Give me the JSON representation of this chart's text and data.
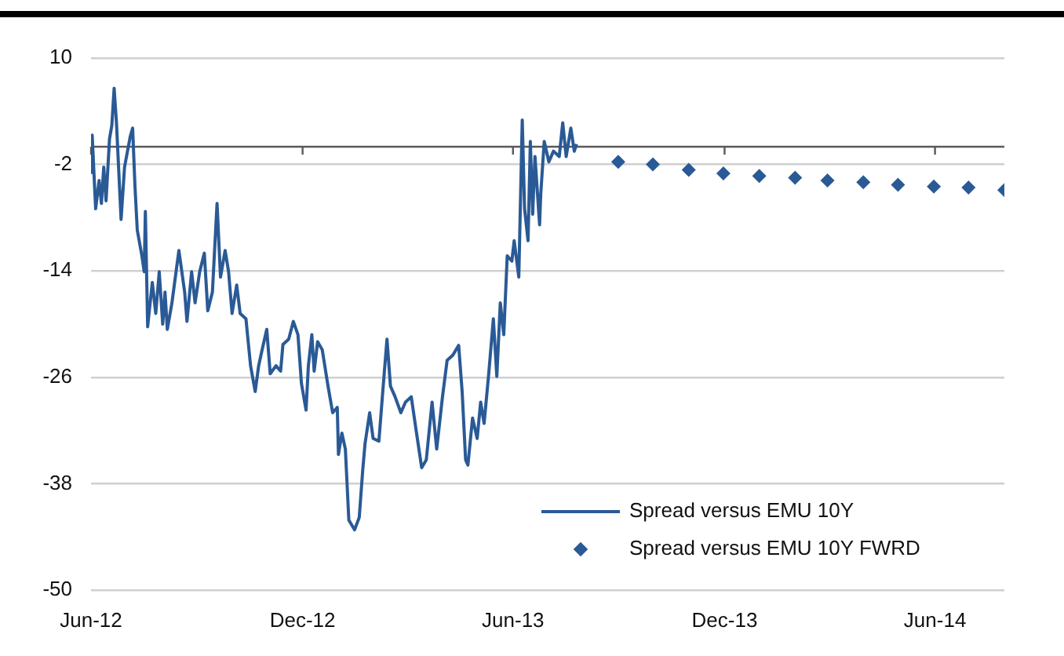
{
  "chart_data": {
    "type": "line",
    "legend": "bottom right",
    "grid": "y",
    "xlim": [
      "2012-06-01",
      "2014-07-31"
    ],
    "xticks": [
      {
        "value": "2012-06-01",
        "label": "Jun-12"
      },
      {
        "value": "2012-12-01",
        "label": "Dec-12"
      },
      {
        "value": "2013-06-01",
        "label": "Jun-13"
      },
      {
        "value": "2013-12-01",
        "label": "Dec-13"
      },
      {
        "value": "2014-06-01",
        "label": "Jun-14"
      }
    ],
    "ylim": [
      -50,
      10
    ],
    "yticks": [
      -50,
      -38,
      -26,
      -14,
      -2,
      10
    ],
    "ref_lines": [
      {
        "axis": "y",
        "value": 0,
        "color": "#595959"
      }
    ],
    "series": [
      {
        "name": "Spread versus EMU 10Y",
        "type": "line",
        "marker": "none",
        "color": "#2a5a96",
        "x": [
          "2012-06-01",
          "2012-06-02",
          "2012-06-05",
          "2012-06-08",
          "2012-06-10",
          "2012-06-12",
          "2012-06-14",
          "2012-06-17",
          "2012-06-19",
          "2012-06-21",
          "2012-06-23",
          "2012-06-27",
          "2012-06-30",
          "2012-07-05",
          "2012-07-07",
          "2012-07-09",
          "2012-07-11",
          "2012-07-15",
          "2012-07-17",
          "2012-07-18",
          "2012-07-20",
          "2012-07-24",
          "2012-07-27",
          "2012-07-30",
          "2012-08-02",
          "2012-08-04",
          "2012-08-06",
          "2012-08-10",
          "2012-08-16",
          "2012-08-21",
          "2012-08-23",
          "2012-08-27",
          "2012-08-30",
          "2012-09-03",
          "2012-09-07",
          "2012-09-10",
          "2012-09-14",
          "2012-09-18",
          "2012-09-21",
          "2012-09-25",
          "2012-09-28",
          "2012-10-01",
          "2012-10-05",
          "2012-10-08",
          "2012-10-13",
          "2012-10-17",
          "2012-10-21",
          "2012-10-24",
          "2012-10-27",
          "2012-10-31",
          "2012-11-03",
          "2012-11-08",
          "2012-11-12",
          "2012-11-14",
          "2012-11-19",
          "2012-11-23",
          "2012-11-27",
          "2012-11-30",
          "2012-12-04",
          "2012-12-06",
          "2012-12-09",
          "2012-12-11",
          "2012-12-14",
          "2012-12-18",
          "2012-12-23",
          "2012-12-27",
          "2012-12-31",
          "2013-01-01",
          "2013-01-04",
          "2013-01-07",
          "2013-01-10",
          "2013-01-15",
          "2013-01-19",
          "2013-01-22",
          "2013-01-24",
          "2013-01-28",
          "2013-01-31",
          "2013-02-05",
          "2013-02-08",
          "2013-02-12",
          "2013-02-15",
          "2013-02-19",
          "2013-02-24",
          "2013-02-28",
          "2013-03-05",
          "2013-03-09",
          "2013-03-14",
          "2013-03-18",
          "2013-03-23",
          "2013-03-27",
          "2013-04-01",
          "2013-04-05",
          "2013-04-10",
          "2013-04-15",
          "2013-04-18",
          "2013-04-21",
          "2013-04-23",
          "2013-04-27",
          "2013-05-01",
          "2013-05-04",
          "2013-05-07",
          "2013-05-11",
          "2013-05-15",
          "2013-05-18",
          "2013-05-21",
          "2013-05-24",
          "2013-05-27",
          "2013-05-31",
          "2013-06-02",
          "2013-06-06",
          "2013-06-09",
          "2013-06-11",
          "2013-06-14",
          "2013-06-16",
          "2013-06-18",
          "2013-06-20",
          "2013-06-24",
          "2013-06-25",
          "2013-06-28",
          "2013-07-02",
          "2013-07-06",
          "2013-07-11",
          "2013-07-14",
          "2013-07-17",
          "2013-07-21",
          "2013-07-24",
          "2013-07-26"
        ],
        "values": [
          -2.9,
          1.3,
          -7.0,
          -3.8,
          -6.4,
          -2.3,
          -6.1,
          0.9,
          2.4,
          6.6,
          2.7,
          -8.2,
          -2.3,
          1.2,
          2.1,
          -4.4,
          -9.4,
          -12.3,
          -14.1,
          -7.3,
          -20.3,
          -15.3,
          -18.8,
          -14.1,
          -20.0,
          -16.4,
          -20.6,
          -17.6,
          -11.7,
          -16.4,
          -19.7,
          -14.1,
          -17.6,
          -14.1,
          -12.0,
          -18.5,
          -16.4,
          -6.4,
          -14.7,
          -11.7,
          -14.1,
          -18.8,
          -15.6,
          -18.8,
          -19.4,
          -24.7,
          -27.6,
          -24.7,
          -22.9,
          -20.6,
          -25.6,
          -24.7,
          -25.3,
          -22.3,
          -21.7,
          -19.7,
          -21.2,
          -26.7,
          -29.7,
          -24.7,
          -21.2,
          -25.3,
          -22.0,
          -22.9,
          -27.0,
          -30.0,
          -29.4,
          -34.7,
          -32.3,
          -34.1,
          -42.1,
          -43.2,
          -41.8,
          -36.5,
          -33.5,
          -30.0,
          -32.9,
          -33.2,
          -28.2,
          -21.7,
          -27.0,
          -28.2,
          -30.0,
          -28.8,
          -28.2,
          -31.8,
          -36.2,
          -35.3,
          -28.8,
          -34.1,
          -28.2,
          -24.1,
          -23.5,
          -22.4,
          -27.6,
          -35.3,
          -35.9,
          -30.6,
          -32.9,
          -28.8,
          -31.2,
          -25.6,
          -19.4,
          -25.9,
          -17.6,
          -21.2,
          -12.3,
          -12.9,
          -10.6,
          -14.7,
          3.0,
          -7.0,
          -10.6,
          0.6,
          -7.6,
          -1.1,
          -8.8,
          -5.3,
          0.6,
          -1.7,
          -0.5,
          -1.1,
          2.7,
          -1.1,
          2.1,
          -0.5,
          0.3
        ]
      },
      {
        "name": "Spread versus EMU 10Y FWRD",
        "type": "scatter",
        "marker": "diamond",
        "color": "#2a5a96",
        "x": [
          "2013-08-31",
          "2013-09-30",
          "2013-10-31",
          "2013-11-30",
          "2013-12-31",
          "2014-01-31",
          "2014-02-28",
          "2014-03-31",
          "2014-04-30",
          "2014-05-31",
          "2014-06-30",
          "2014-07-31"
        ],
        "values": [
          -1.7,
          -2.0,
          -2.6,
          -3.0,
          -3.3,
          -3.5,
          -3.8,
          -4.0,
          -4.3,
          -4.5,
          -4.6,
          -4.9
        ]
      }
    ]
  }
}
